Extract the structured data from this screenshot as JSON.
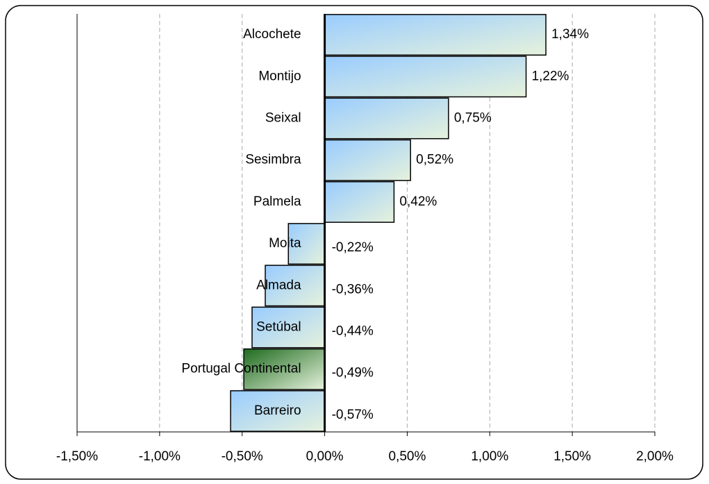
{
  "chart_data": {
    "type": "hbar",
    "categories": [
      "Alcochete",
      "Montijo",
      "Seixal",
      "Sesimbra",
      "Palmela",
      "Moita",
      "Almada",
      "Setúbal",
      "Portugal Continental",
      "Barreiro"
    ],
    "values": [
      1.34,
      1.22,
      0.75,
      0.52,
      0.42,
      -0.22,
      -0.36,
      -0.44,
      -0.49,
      -0.57
    ],
    "value_labels": [
      "1,34%",
      "1,22%",
      "0,75%",
      "0,52%",
      "0,42%",
      "-0,22%",
      "-0,36%",
      "-0,44%",
      "-0,49%",
      "-0,57%"
    ],
    "colors": [
      "#99ccff",
      "#99ccff",
      "#99ccff",
      "#99ccff",
      "#99ccff",
      "#99ccff",
      "#99ccff",
      "#99ccff",
      "#1f6b1f",
      "#99ccff"
    ],
    "label_colors": [
      "#333399",
      "#333399",
      "#333399",
      "#333399",
      "#333399",
      "#333399",
      "#333399",
      "#333399",
      "#008000",
      "#333399"
    ],
    "xlim": [
      -1.5,
      2.0
    ],
    "xticks": [
      {
        "value": -1.5,
        "label": "-1,50%"
      },
      {
        "value": -1.0,
        "label": "-1,00%"
      },
      {
        "value": -0.5,
        "label": "-0,50%"
      },
      {
        "value": 0,
        "label": "0,00%"
      },
      {
        "value": 0.5,
        "label": "0,50%"
      },
      {
        "value": 1.0,
        "label": "1,00%"
      },
      {
        "value": 1.5,
        "label": "1,50%"
      },
      {
        "value": 2.0,
        "label": "2,00%"
      }
    ],
    "grid": true
  }
}
